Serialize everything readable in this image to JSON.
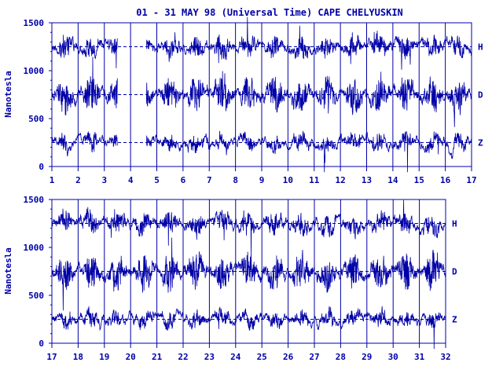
{
  "title": "01 - 31 MAY 98 (Universal Time) CAPE CHELYUSKIN",
  "colors": {
    "ink": "#0000a8",
    "background": "#ffffff"
  },
  "chart_data": [
    {
      "type": "line",
      "panel": "top",
      "ylabel": "Nanotesla",
      "ylim": [
        0,
        1500
      ],
      "y_ticks": [
        "0",
        "500",
        "1000",
        "1500"
      ],
      "xlim": [
        1,
        17
      ],
      "x_ticks": [
        "1",
        "2",
        "3",
        "4",
        "5",
        "6",
        "7",
        "8",
        "9",
        "10",
        "11",
        "12",
        "13",
        "14",
        "15",
        "16",
        "17"
      ],
      "data_gap": [
        3.5,
        4.6
      ],
      "reference_levels": [
        {
          "name": "H",
          "value": 1250
        },
        {
          "name": "D",
          "value": 750
        },
        {
          "name": "Z",
          "value": 250
        }
      ],
      "series": [
        {
          "name": "H"
        },
        {
          "name": "D"
        },
        {
          "name": "Z"
        }
      ]
    },
    {
      "type": "line",
      "panel": "bottom",
      "ylabel": "Nanotesla",
      "ylim": [
        0,
        1500
      ],
      "y_ticks": [
        "0",
        "500",
        "1000",
        "1500"
      ],
      "xlim": [
        17,
        32
      ],
      "x_ticks": [
        "17",
        "18",
        "19",
        "20",
        "21",
        "22",
        "23",
        "24",
        "25",
        "26",
        "27",
        "28",
        "29",
        "30",
        "31",
        "32"
      ],
      "reference_levels": [
        {
          "name": "H",
          "value": 1250
        },
        {
          "name": "D",
          "value": 750
        },
        {
          "name": "Z",
          "value": 250
        }
      ],
      "series": [
        {
          "name": "H"
        },
        {
          "name": "D"
        },
        {
          "name": "Z"
        }
      ]
    }
  ]
}
